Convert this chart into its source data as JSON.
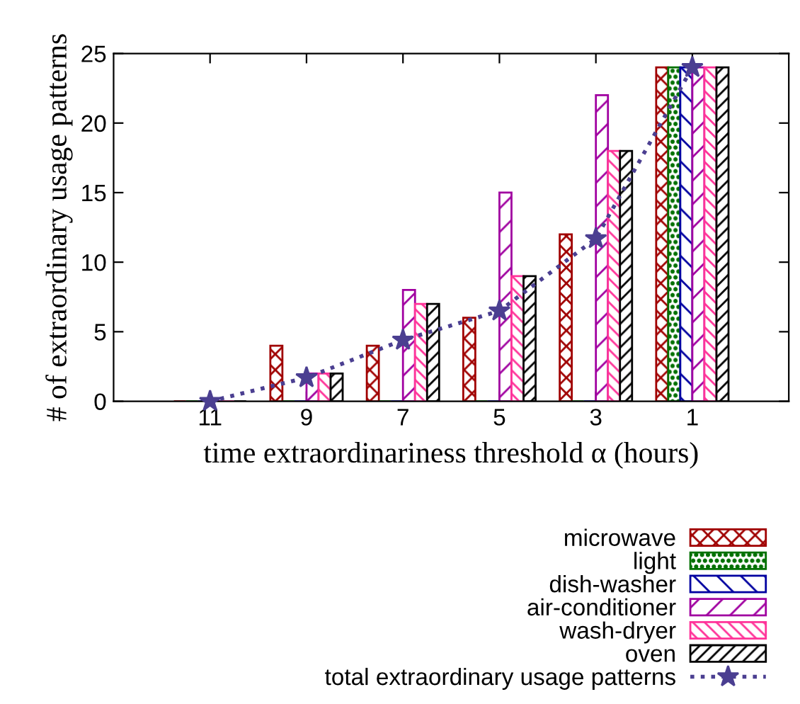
{
  "chart_data": {
    "type": "bar",
    "xlabel": "time extraordinariness threshold α (hours)",
    "ylabel": "# of extraordinary usage patterns",
    "categories": [
      "11",
      "9",
      "7",
      "5",
      "3",
      "1"
    ],
    "ylim": [
      0,
      25
    ],
    "yticks": [
      0,
      5,
      10,
      15,
      20,
      25
    ],
    "grid": false,
    "legend": "bottom",
    "series": [
      {
        "name": "microwave",
        "color": "#a00000",
        "values": [
          0,
          4,
          4,
          6,
          12,
          24
        ]
      },
      {
        "name": "light",
        "color": "#007000",
        "values": [
          0,
          0,
          0,
          0,
          0,
          24
        ]
      },
      {
        "name": "dish-washer",
        "color": "#0000a0",
        "values": [
          0,
          0,
          0,
          0,
          0,
          24
        ]
      },
      {
        "name": "air-conditioner",
        "color": "#a000a0",
        "values": [
          0,
          2,
          8,
          15,
          22,
          24
        ]
      },
      {
        "name": "wash-dryer",
        "color": "#ff3399",
        "values": [
          0,
          2,
          7,
          9,
          18,
          24
        ]
      },
      {
        "name": "oven",
        "color": "#000000",
        "values": [
          0,
          2,
          7,
          9,
          18,
          24
        ]
      },
      {
        "name": "total extraordinary usage patterns",
        "type": "line",
        "color": "#4b3f91",
        "marker": "star",
        "line_style": "dotted",
        "values": [
          0,
          1.7,
          4.4,
          6.5,
          11.7,
          24
        ]
      }
    ]
  }
}
